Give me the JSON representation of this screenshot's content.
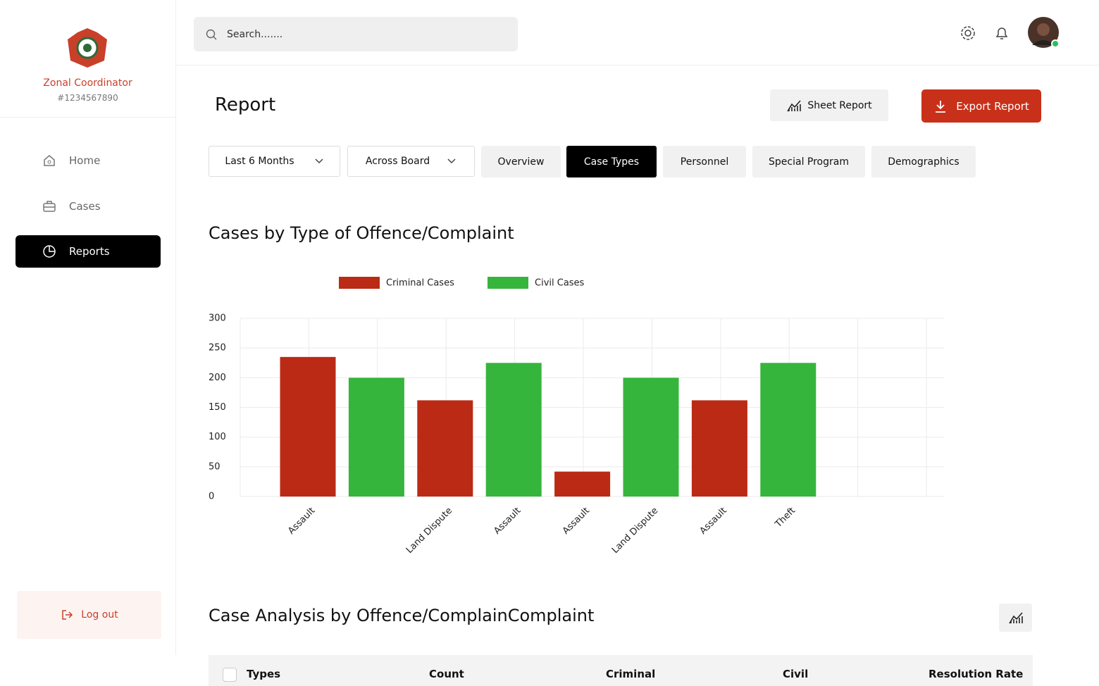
{
  "sidebar": {
    "role": "Zonal Coordinator",
    "id": "#1234567890",
    "nav": [
      "Home",
      "Cases",
      "Reports"
    ],
    "logout": "Log out"
  },
  "header": {
    "search_placeholder": "Search......."
  },
  "page": {
    "title": "Report",
    "sheet_button": "Sheet Report",
    "export_button": "Export Report",
    "filters": [
      "Last 6 Months",
      "Across Board"
    ],
    "tabs": [
      "Overview",
      "Case Types",
      "Personnel",
      "Special Program",
      "Demographics"
    ]
  },
  "chart_data": {
    "type": "bar",
    "title": "Cases by Type of Offence/Complaint",
    "categories": [
      "Assault",
      null,
      "Land Dispute",
      "Assault",
      "Assault",
      "Land Dispute",
      "Assault",
      "Theft"
    ],
    "series": [
      {
        "name": "Criminal Cases",
        "color": "#bb2a14",
        "values": [
          235,
          null,
          162,
          null,
          42,
          null,
          162,
          null
        ]
      },
      {
        "name": "Civil Cases",
        "color": "#36b53c",
        "values": [
          null,
          200,
          null,
          225,
          null,
          200,
          null,
          225
        ]
      }
    ],
    "ylim": [
      0,
      300
    ],
    "yticks": [
      0,
      50,
      100,
      150,
      200,
      250,
      300
    ],
    "grid": true,
    "legend": "top"
  },
  "table": {
    "title": "Case Analysis by Offence/ComplainComplaint",
    "columns": [
      "Types",
      "Count",
      "Criminal",
      "Civil",
      "Resolution Rate"
    ]
  }
}
